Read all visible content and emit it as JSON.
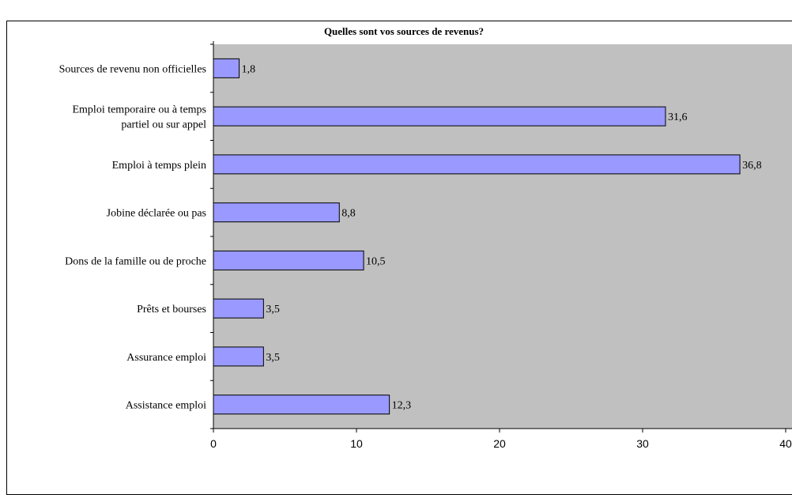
{
  "chart_data": {
    "type": "bar",
    "orientation": "horizontal",
    "title": "Quelles sont vos sources de revenus?",
    "xlabel": "",
    "ylabel": "",
    "categories": [
      [
        "Sources de revenu non officielles"
      ],
      [
        "Emploi temporaire ou à temps",
        "partiel ou sur appel"
      ],
      [
        "Emploi à temps plein"
      ],
      [
        "Jobine déclarée ou pas"
      ],
      [
        "Dons de la famille ou de proche"
      ],
      [
        "Prêts et bourses"
      ],
      [
        "Assurance emploi"
      ],
      [
        "Assistance emploi"
      ]
    ],
    "values": [
      1.8,
      31.6,
      36.8,
      8.8,
      10.5,
      3.5,
      3.5,
      12.3
    ],
    "value_labels": [
      "1,8",
      "31,6",
      "36,8",
      "8,8",
      "10,5",
      "3,5",
      "3,5",
      "12,3"
    ],
    "xlim": [
      0,
      40
    ],
    "ticks": [
      0,
      10,
      20,
      30,
      40
    ],
    "tick_labels": [
      "0",
      "10",
      "20",
      "30",
      "40"
    ],
    "grid": false,
    "legend": "none",
    "colors": {
      "plot_background": "#c0c0c0",
      "bar_fill": "#9999ff",
      "bar_stroke": "#000000"
    }
  }
}
